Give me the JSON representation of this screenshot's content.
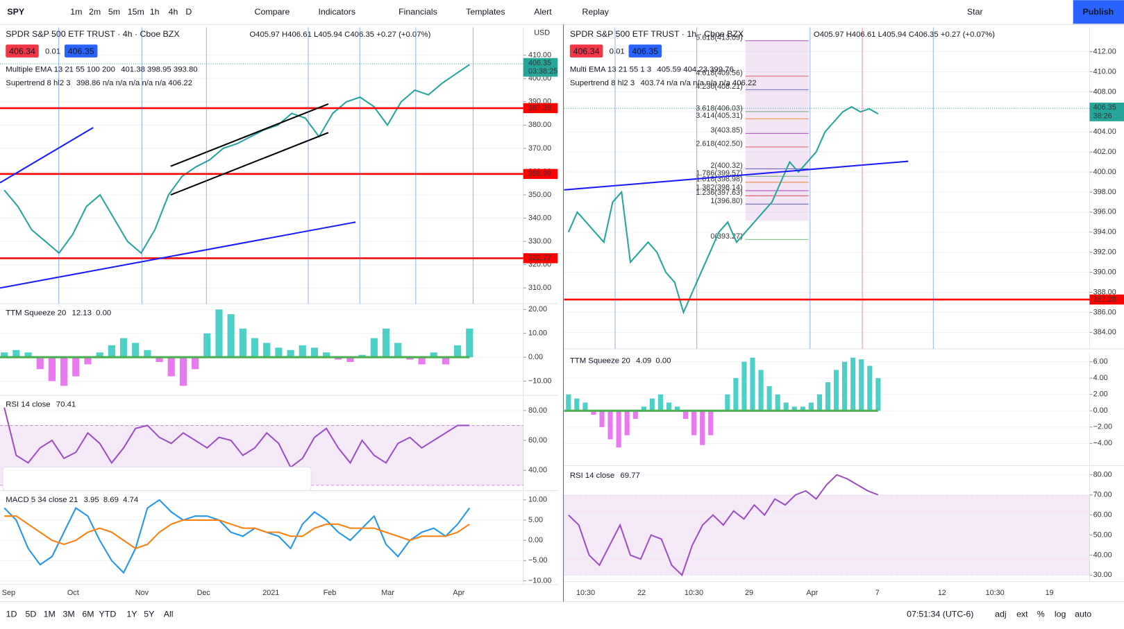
{
  "toolbar": {
    "symbol": "SPY",
    "intervals": [
      "1m",
      "2m",
      "5m",
      "15m",
      "1h",
      "4h",
      "D"
    ],
    "buttons": [
      "Compare",
      "Indicators",
      "Financials",
      "Templates",
      "Alert",
      "Replay"
    ],
    "layout": "Star",
    "publish": "Publish"
  },
  "bottom": {
    "ranges": [
      "1D",
      "5D",
      "1M",
      "3M",
      "6M",
      "YTD",
      "1Y",
      "5Y",
      "All"
    ],
    "clock": "07:51:34 (UTC-6)",
    "options": [
      "adj",
      "ext",
      "%",
      "log",
      "auto"
    ]
  },
  "left": {
    "main": {
      "title": "SPDR S&P 500 ETF TRUST · 4h · Cboe BZX",
      "ohlc": "O405.97 H406.61 L405.94 C406.35 +0.27 (+0.07%)",
      "bid": "406.34",
      "spread": "0.01",
      "ask": "406.35",
      "currency": "USD",
      "indicators": [
        {
          "name": "Multiple EMA 13 21 55 100 200",
          "values": "401.38 398.95 393.80"
        },
        {
          "name": "Supertrend 8 hl2 3",
          "values": "398.86 n/a n/a n/a n/a n/a 406.22"
        }
      ],
      "ylim": [
        303.2,
        422
      ],
      "yticks": [
        {
          "value": 410,
          "label": "410.00"
        },
        {
          "value": 400,
          "label": "400.00"
        },
        {
          "value": 390,
          "label": "390.00"
        },
        {
          "value": 380,
          "label": "380.00"
        },
        {
          "value": 370,
          "label": "370.00"
        },
        {
          "value": 360,
          "label": "360.00"
        },
        {
          "value": 350,
          "label": "350.00"
        },
        {
          "value": 340,
          "label": "340.00"
        },
        {
          "value": 330,
          "label": "330.00"
        },
        {
          "value": 320,
          "label": "320.00"
        },
        {
          "value": 310,
          "label": "310.00"
        }
      ],
      "levels": [
        387.28,
        358.99,
        322.77
      ],
      "last": 406.35,
      "countdown": "03:38:25",
      "series": [
        {
          "type": "line",
          "color": "#26a69a",
          "values": [
            352,
            345,
            335,
            330,
            325,
            333,
            345,
            350,
            340,
            330,
            325,
            335,
            350,
            358,
            362,
            365,
            370,
            372,
            375,
            378,
            380,
            385,
            383,
            375,
            385,
            390,
            392,
            388,
            380,
            390,
            395,
            393,
            398,
            402,
            406
          ]
        }
      ]
    },
    "squeeze": {
      "name": "TTM Squeeze 20",
      "legend": [
        "12.13",
        "0.00"
      ],
      "ylim": [
        -16,
        22.1
      ],
      "yticks": [
        {
          "value": 20,
          "label": "20.00"
        },
        {
          "value": 10,
          "label": "10.00"
        },
        {
          "value": 0,
          "label": "0.00"
        },
        {
          "value": -10,
          "label": "−10.00"
        }
      ],
      "series": [
        {
          "type": "hist",
          "color": "#4dd0c8",
          "neg_color": "#e879f0",
          "values": [
            2,
            3,
            2,
            -5,
            -10,
            -12,
            -8,
            -3,
            2,
            5,
            8,
            6,
            3,
            -2,
            -8,
            -12,
            -5,
            10,
            20,
            18,
            12,
            8,
            6,
            4,
            3,
            5,
            4,
            2,
            -1,
            -2,
            1,
            8,
            12,
            6,
            -1,
            -3,
            2,
            -3,
            5,
            12
          ]
        }
      ]
    },
    "rsi": {
      "name": "RSI 14 close",
      "legend": [
        "70.41"
      ],
      "ylim": [
        26.4,
        89.6
      ],
      "band": [
        30,
        70
      ],
      "yticks": [
        {
          "value": 80,
          "label": "80.00"
        },
        {
          "value": 60,
          "label": "60.00"
        },
        {
          "value": 40,
          "label": "40.00"
        }
      ],
      "series": [
        {
          "type": "line",
          "color": "#9c4fc4",
          "values": [
            82,
            50,
            45,
            55,
            60,
            48,
            52,
            65,
            58,
            45,
            55,
            68,
            70,
            62,
            58,
            65,
            60,
            55,
            62,
            60,
            50,
            55,
            65,
            58,
            42,
            48,
            62,
            68,
            55,
            45,
            60,
            50,
            45,
            58,
            62,
            55,
            60,
            65,
            70,
            70
          ]
        }
      ]
    },
    "macd": {
      "name": "MACD 5 34 close 21",
      "legend": [
        "3.95",
        "8.69",
        "4.74"
      ],
      "ylim": [
        -10.9,
        12.1
      ],
      "yticks": [
        {
          "value": 10,
          "label": "10.00"
        },
        {
          "value": 5,
          "label": "5.00"
        },
        {
          "value": 0,
          "label": "0.00"
        },
        {
          "value": -5,
          "label": "−5.00"
        },
        {
          "value": -10,
          "label": "−10.00"
        }
      ],
      "series": [
        {
          "type": "line",
          "color": "#2196f3",
          "values": [
            8,
            5,
            -2,
            -6,
            -4,
            2,
            8,
            6,
            0,
            -5,
            -8,
            -2,
            8,
            10,
            7,
            5,
            6,
            6,
            5,
            2,
            1,
            3,
            2,
            1,
            -2,
            4,
            7,
            5,
            2,
            0,
            3,
            6,
            -1,
            -4,
            0,
            2,
            3,
            1,
            4,
            8
          ]
        },
        {
          "type": "line",
          "color": "#ff7f0e",
          "values": [
            6,
            6,
            4,
            2,
            0,
            -1,
            0,
            2,
            3,
            2,
            0,
            -2,
            -1,
            2,
            4,
            5,
            5,
            5,
            5,
            4,
            3,
            3,
            2,
            2,
            1,
            1,
            3,
            4,
            4,
            3,
            3,
            3,
            2,
            1,
            0,
            1,
            1,
            1,
            2,
            4
          ]
        }
      ]
    },
    "time_labels": [
      "Sep",
      "Oct",
      "Nov",
      "Dec",
      "2021",
      "Feb",
      "Mar",
      "Apr"
    ]
  },
  "right": {
    "main": {
      "title": "SPDR S&P 500 ETF TRUST · 1h · Cboe BZX",
      "ohlc": "O405.97 H406.61 L405.94 C406.35 +0.27 (+0.07%)",
      "bid": "406.34",
      "spread": "0.01",
      "ask": "406.35",
      "indicators": [
        {
          "name": "Multi EMA 13 21 55 1 3",
          "values": "405.59 404.23 399.76"
        },
        {
          "name": "Supertrend 8 hl2 3",
          "values": "403.74 n/a n/a n/a n/a n/a 406.22"
        }
      ],
      "ylim": [
        382.36,
        414.43
      ],
      "yticks": [
        {
          "value": 412,
          "label": "412.00"
        },
        {
          "value": 410,
          "label": "410.00"
        },
        {
          "value": 408,
          "label": "408.00"
        },
        {
          "value": 406,
          "label": "406.00"
        },
        {
          "value": 404,
          "label": "404.00"
        },
        {
          "value": 402,
          "label": "402.00"
        },
        {
          "value": 400,
          "label": "400.00"
        },
        {
          "value": 398,
          "label": "398.00"
        },
        {
          "value": 396,
          "label": "396.00"
        },
        {
          "value": 394,
          "label": "394.00"
        },
        {
          "value": 392,
          "label": "392.00"
        },
        {
          "value": 390,
          "label": "390.00"
        },
        {
          "value": 388,
          "label": "388.00"
        },
        {
          "value": 386,
          "label": "386.00"
        },
        {
          "value": 384,
          "label": "384.00"
        }
      ],
      "levels": [
        387.28
      ],
      "last": 406.35,
      "countdown": "38:26",
      "fib": [
        {
          "value": 413.09,
          "label": "5.618(413.09)"
        },
        {
          "value": 409.56,
          "label": "4.618(409.56)"
        },
        {
          "value": 408.21,
          "label": "4.236(408.21)"
        },
        {
          "value": 406.03,
          "label": "3.618(406.03)"
        },
        {
          "value": 405.31,
          "label": "3.414(405.31)"
        },
        {
          "value": 403.85,
          "label": "3(403.85)"
        },
        {
          "value": 402.5,
          "label": "2.618(402.50)"
        },
        {
          "value": 400.32,
          "label": "2(400.32)"
        },
        {
          "value": 399.57,
          "label": "1.786(399.57)"
        },
        {
          "value": 398.98,
          "label": "1.618(398.98)"
        },
        {
          "value": 398.14,
          "label": "1.382(398.14)"
        },
        {
          "value": 397.63,
          "label": "1.236(397.63)"
        },
        {
          "value": 396.8,
          "label": "1(396.80)"
        },
        {
          "value": 393.27,
          "label": "0(393.27)"
        }
      ],
      "series": [
        {
          "type": "line",
          "color": "#26a69a",
          "values": [
            394,
            396,
            395,
            394,
            393,
            397,
            398,
            391,
            392,
            393,
            392,
            390,
            389,
            386,
            388,
            390,
            392,
            394,
            395,
            393,
            394,
            395,
            396,
            397,
            399,
            401,
            400,
            401,
            402,
            404,
            405,
            406,
            406.5,
            406,
            406.3,
            405.8
          ]
        }
      ]
    },
    "squeeze": {
      "name": "TTM Squeeze 20",
      "legend": [
        "4.09",
        "0.00"
      ],
      "ylim": [
        -6.72,
        7.14
      ],
      "yticks": [
        {
          "value": 6,
          "label": "6.00"
        },
        {
          "value": 4,
          "label": "4.00"
        },
        {
          "value": 2,
          "label": "2.00"
        },
        {
          "value": 0,
          "label": "0.00"
        },
        {
          "value": -2,
          "label": "−2.00"
        },
        {
          "value": -4,
          "label": "−4.00"
        }
      ],
      "series": [
        {
          "type": "hist",
          "color": "#4dd0c8",
          "neg_color": "#e879f0",
          "values": [
            2,
            1.5,
            1,
            -0.5,
            -2,
            -3.5,
            -4.5,
            -3,
            -1,
            0.5,
            1.5,
            2,
            1,
            0.5,
            -1,
            -3,
            -4.2,
            -3,
            0,
            2,
            4,
            6,
            6.5,
            5,
            3,
            2,
            1,
            0.5,
            0.5,
            1,
            2,
            3.5,
            5,
            6,
            6.5,
            6.3,
            5.5,
            4
          ]
        }
      ]
    },
    "rsi": {
      "name": "RSI 14 close",
      "legend": [
        "69.77"
      ],
      "ylim": [
        26.8,
        83.9
      ],
      "band": [
        30,
        70
      ],
      "yticks": [
        {
          "value": 80,
          "label": "80.00"
        },
        {
          "value": 70,
          "label": "70.00"
        },
        {
          "value": 60,
          "label": "60.00"
        },
        {
          "value": 50,
          "label": "50.00"
        },
        {
          "value": 40,
          "label": "40.00"
        },
        {
          "value": 30,
          "label": "30.00"
        }
      ],
      "series": [
        {
          "type": "line",
          "color": "#9c4fc4",
          "values": [
            60,
            55,
            40,
            35,
            45,
            55,
            40,
            38,
            50,
            48,
            35,
            30,
            45,
            55,
            60,
            55,
            62,
            58,
            65,
            60,
            68,
            65,
            70,
            72,
            68,
            75,
            80,
            78,
            75,
            72,
            70
          ]
        }
      ]
    },
    "time_labels": [
      "10:30",
      "22",
      "10:30",
      "29",
      "Apr",
      "7",
      "12",
      "10:30",
      "19"
    ]
  }
}
